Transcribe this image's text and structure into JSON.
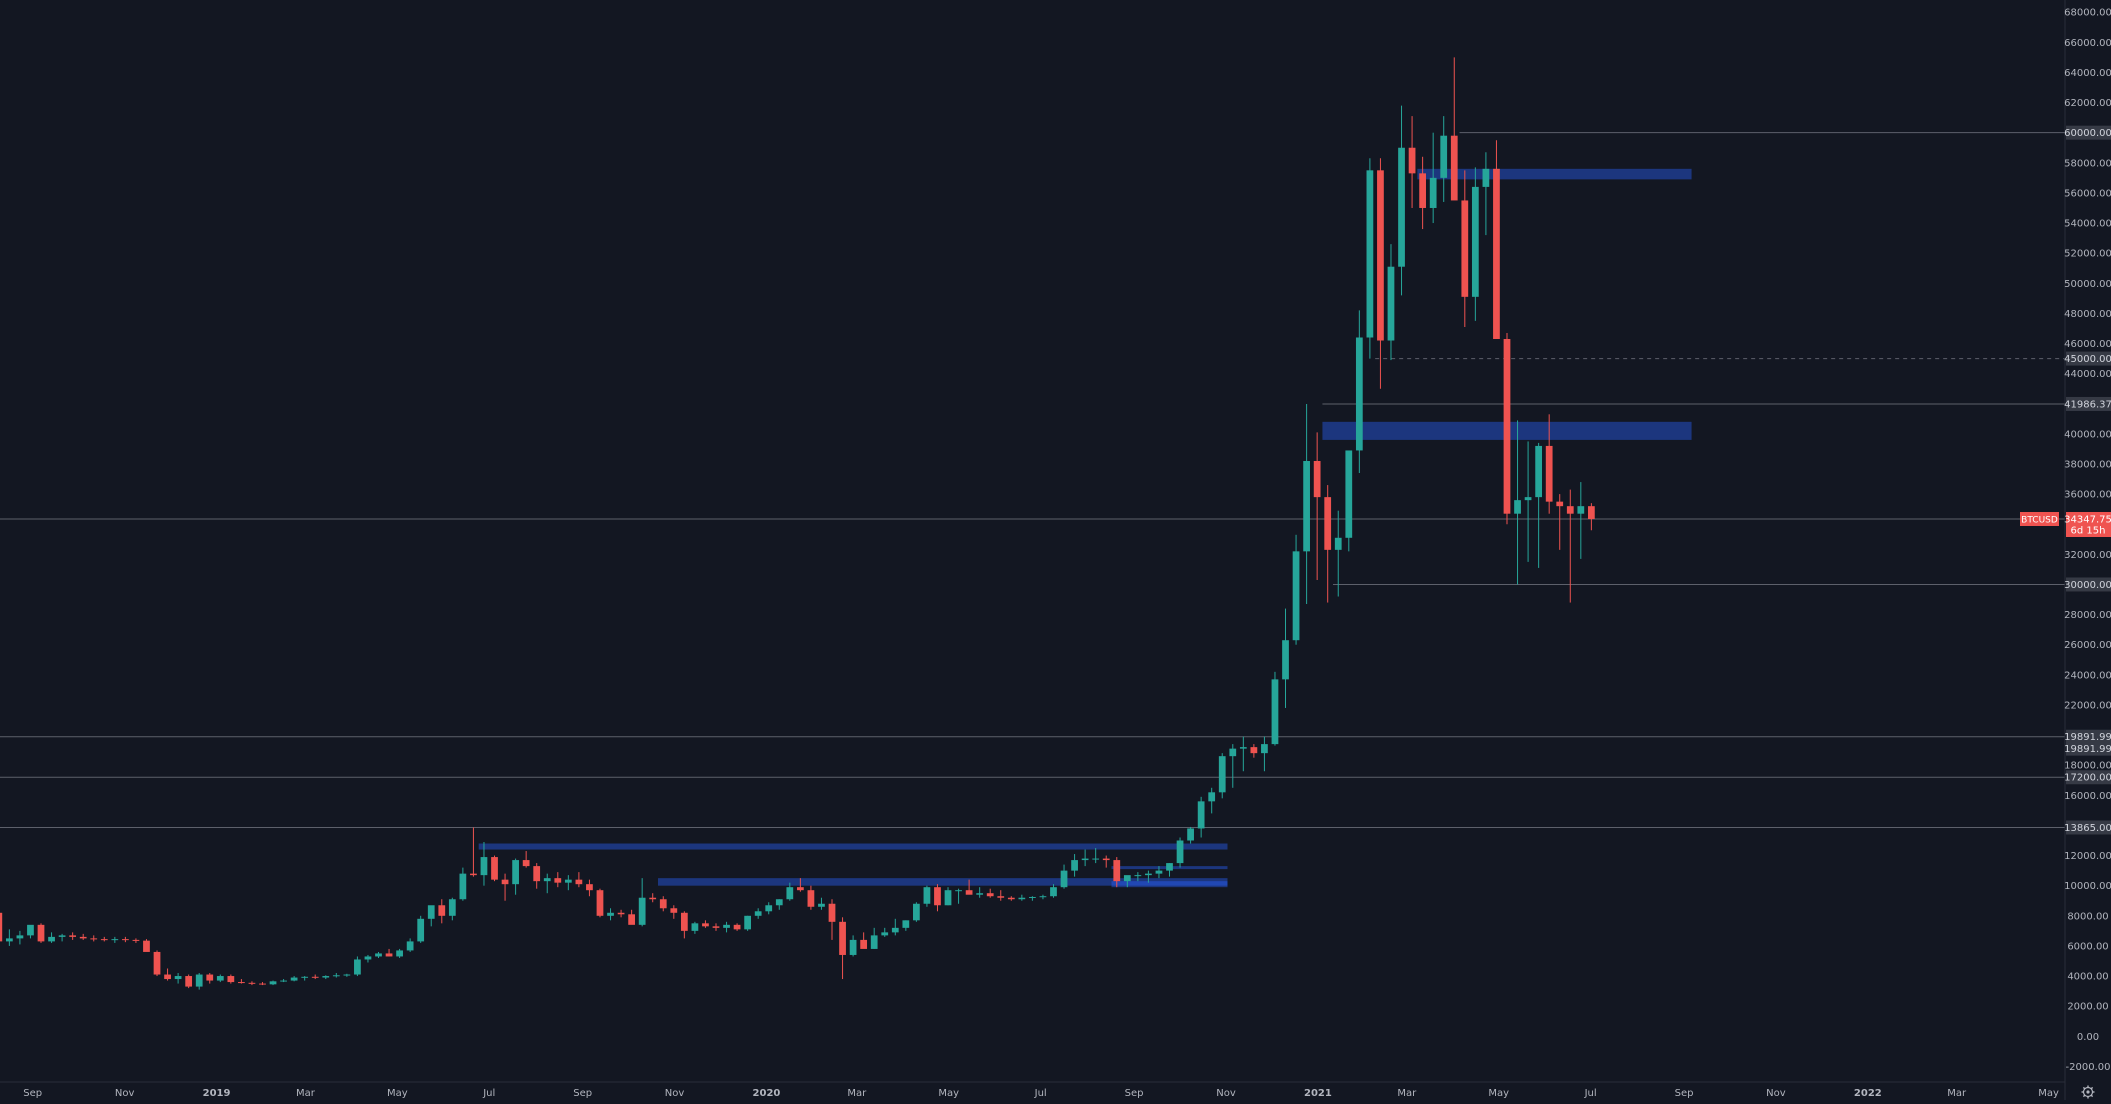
{
  "colors": {
    "background": "#131722",
    "up": "#26a69a",
    "down": "#ef5350",
    "zone": "#2962ff",
    "axis_text": "#b2b5be",
    "hline": "#5d606b",
    "label_bg": "#363a45",
    "price_tag": "#ef5350"
  },
  "icons": {
    "settings": "gear-icon"
  },
  "chart_data": {
    "type": "candlestick",
    "symbol": "BTCUSD",
    "timeframe": "1W",
    "last_price": "34347.75",
    "countdown": "6d 15h",
    "ylim": [
      -2000,
      69000
    ],
    "x_range": [
      "2018-07-30",
      "2022-06-20"
    ],
    "grid": false,
    "y_ticks": [
      -2000,
      0,
      2000,
      4000,
      6000,
      8000,
      10000,
      12000,
      16000,
      18000,
      22000,
      24000,
      26000,
      28000,
      32000,
      36000,
      38000,
      40000,
      44000,
      46000,
      48000,
      50000,
      52000,
      54000,
      56000,
      58000,
      62000,
      64000,
      66000,
      68000
    ],
    "x_ticks": [
      {
        "label": "Sep",
        "date": "2018-09-01",
        "bold": false
      },
      {
        "label": "Nov",
        "date": "2018-11-01",
        "bold": false
      },
      {
        "label": "2019",
        "date": "2019-01-01",
        "bold": true
      },
      {
        "label": "Mar",
        "date": "2019-03-01",
        "bold": false
      },
      {
        "label": "May",
        "date": "2019-05-01",
        "bold": false
      },
      {
        "label": "Jul",
        "date": "2019-07-01",
        "bold": false
      },
      {
        "label": "Sep",
        "date": "2019-09-01",
        "bold": false
      },
      {
        "label": "Nov",
        "date": "2019-11-01",
        "bold": false
      },
      {
        "label": "2020",
        "date": "2020-01-01",
        "bold": true
      },
      {
        "label": "Mar",
        "date": "2020-03-01",
        "bold": false
      },
      {
        "label": "May",
        "date": "2020-05-01",
        "bold": false
      },
      {
        "label": "Jul",
        "date": "2020-07-01",
        "bold": false
      },
      {
        "label": "Sep",
        "date": "2020-09-01",
        "bold": false
      },
      {
        "label": "Nov",
        "date": "2020-11-01",
        "bold": false
      },
      {
        "label": "2021",
        "date": "2021-01-01",
        "bold": true
      },
      {
        "label": "Mar",
        "date": "2021-03-01",
        "bold": false
      },
      {
        "label": "May",
        "date": "2021-05-01",
        "bold": false
      },
      {
        "label": "Jul",
        "date": "2021-07-01",
        "bold": false
      },
      {
        "label": "Sep",
        "date": "2021-09-01",
        "bold": false
      },
      {
        "label": "Nov",
        "date": "2021-11-01",
        "bold": false
      },
      {
        "label": "2022",
        "date": "2022-01-01",
        "bold": true
      },
      {
        "label": "Mar",
        "date": "2022-03-01",
        "bold": false
      },
      {
        "label": "May",
        "date": "2022-05-01",
        "bold": false
      }
    ],
    "horizontal_lines": [
      {
        "price": 60000,
        "label": "60000.00",
        "style": "solid",
        "start": "2021-04-05"
      },
      {
        "price": 45000,
        "label": "45000.00",
        "style": "dashed",
        "start": "2021-02-08"
      },
      {
        "price": 41986.37,
        "label": "41986.37",
        "style": "solid",
        "start": "2021-01-04"
      },
      {
        "price": 30000,
        "label": "30000.00",
        "style": "solid",
        "start": "2021-01-11"
      },
      {
        "price": 19891.99,
        "label": "19891.99",
        "style": "solid",
        "start": null
      },
      {
        "price": 17200,
        "label": "17200.00",
        "style": "solid",
        "start": null
      },
      {
        "price": 13865,
        "label": "13865.00",
        "style": "solid",
        "start": null
      }
    ],
    "extra_axis_labels": [
      {
        "price": 19100,
        "label": "19891.99"
      }
    ],
    "zones": [
      {
        "start": "2021-03-08",
        "end": "2021-09-06",
        "low": 56900,
        "high": 57600
      },
      {
        "start": "2021-01-04",
        "end": "2021-09-06",
        "low": 39600,
        "high": 40800
      },
      {
        "start": "2019-06-24",
        "end": "2020-11-02",
        "low": 12400,
        "high": 12800
      },
      {
        "start": "2019-10-21",
        "end": "2020-11-02",
        "low": 10000,
        "high": 10500
      },
      {
        "start": "2020-08-17",
        "end": "2020-11-02",
        "low": 11100,
        "high": 11300
      },
      {
        "start": "2020-08-17",
        "end": "2020-11-02",
        "low": 9900,
        "high": 10300
      }
    ],
    "candles": {
      "start": "2018-07-30",
      "interval_days": 7,
      "fields": [
        "open",
        "high",
        "low",
        "close"
      ],
      "ohlc": [
        [
          7000,
          8500,
          6800,
          8200
        ],
        [
          8200,
          8400,
          6100,
          6300
        ],
        [
          6300,
          7100,
          6000,
          6500
        ],
        [
          6500,
          7000,
          6100,
          6700
        ],
        [
          6700,
          7300,
          6500,
          7400
        ],
        [
          7400,
          7500,
          6200,
          6300
        ],
        [
          6300,
          6900,
          6200,
          6600
        ],
        [
          6600,
          6800,
          6300,
          6700
        ],
        [
          6700,
          6900,
          6400,
          6600
        ],
        [
          6600,
          6800,
          6400,
          6500
        ],
        [
          6500,
          6700,
          6300,
          6450
        ],
        [
          6450,
          6600,
          6300,
          6400
        ],
        [
          6400,
          6600,
          6200,
          6450
        ],
        [
          6450,
          6600,
          6250,
          6400
        ],
        [
          6400,
          6500,
          6200,
          6350
        ],
        [
          6350,
          6450,
          5800,
          5600
        ],
        [
          5600,
          5700,
          4000,
          4100
        ],
        [
          4100,
          4500,
          3700,
          3800
        ],
        [
          3800,
          4200,
          3500,
          4000
        ],
        [
          4000,
          4100,
          3200,
          3300
        ],
        [
          3300,
          4200,
          3100,
          4100
        ],
        [
          4100,
          4200,
          3500,
          3700
        ],
        [
          3700,
          4100,
          3600,
          4000
        ],
        [
          4000,
          4100,
          3500,
          3600
        ],
        [
          3600,
          3800,
          3500,
          3550
        ],
        [
          3550,
          3650,
          3400,
          3500
        ],
        [
          3500,
          3600,
          3400,
          3450
        ],
        [
          3450,
          3700,
          3400,
          3650
        ],
        [
          3650,
          3800,
          3600,
          3700
        ],
        [
          3700,
          4000,
          3650,
          3900
        ],
        [
          3900,
          4000,
          3700,
          3950
        ],
        [
          3950,
          4100,
          3800,
          3900
        ],
        [
          3900,
          4050,
          3800,
          4000
        ],
        [
          4000,
          4200,
          3900,
          4050
        ],
        [
          4050,
          4150,
          3950,
          4100
        ],
        [
          4100,
          5300,
          4000,
          5100
        ],
        [
          5100,
          5400,
          4900,
          5300
        ],
        [
          5300,
          5600,
          5200,
          5500
        ],
        [
          5500,
          5800,
          5300,
          5300
        ],
        [
          5300,
          5800,
          5200,
          5700
        ],
        [
          5700,
          6500,
          5600,
          6300
        ],
        [
          6300,
          8000,
          6200,
          7800
        ],
        [
          7800,
          8400,
          7300,
          8700
        ],
        [
          8700,
          9100,
          7500,
          8000
        ],
        [
          8000,
          9200,
          7700,
          9100
        ],
        [
          9100,
          11200,
          9000,
          10800
        ],
        [
          10800,
          13865,
          10600,
          10700
        ],
        [
          10700,
          12900,
          10000,
          11900
        ],
        [
          11900,
          12000,
          10300,
          10400
        ],
        [
          10400,
          10800,
          9000,
          10100
        ],
        [
          10100,
          11800,
          9400,
          11700
        ],
        [
          11700,
          12300,
          11200,
          11300
        ],
        [
          11300,
          11500,
          9800,
          10300
        ],
        [
          10300,
          10800,
          9500,
          10500
        ],
        [
          10500,
          10900,
          9900,
          10200
        ],
        [
          10200,
          10700,
          9700,
          10400
        ],
        [
          10400,
          10900,
          9900,
          10100
        ],
        [
          10100,
          10400,
          9300,
          9700
        ],
        [
          9700,
          9800,
          7900,
          8000
        ],
        [
          8000,
          8500,
          7700,
          8200
        ],
        [
          8200,
          8400,
          7900,
          8100
        ],
        [
          8100,
          8400,
          7500,
          7400
        ],
        [
          7400,
          10500,
          7300,
          9200
        ],
        [
          9200,
          9500,
          8900,
          9100
        ],
        [
          9100,
          9300,
          8300,
          8500
        ],
        [
          8500,
          8700,
          7800,
          8200
        ],
        [
          8200,
          8300,
          6500,
          7000
        ],
        [
          7000,
          7600,
          6800,
          7500
        ],
        [
          7500,
          7700,
          7200,
          7300
        ],
        [
          7300,
          7500,
          7000,
          7200
        ],
        [
          7200,
          7600,
          6900,
          7400
        ],
        [
          7400,
          7500,
          7000,
          7100
        ],
        [
          7100,
          8000,
          7000,
          8000
        ],
        [
          8000,
          8500,
          7800,
          8300
        ],
        [
          8300,
          8900,
          8100,
          8700
        ],
        [
          8700,
          9100,
          8400,
          9100
        ],
        [
          9100,
          10200,
          9000,
          9900
        ],
        [
          9900,
          10500,
          9600,
          9700
        ],
        [
          9700,
          10000,
          8400,
          8600
        ],
        [
          8600,
          9200,
          8400,
          8800
        ],
        [
          8800,
          9100,
          6400,
          7600
        ],
        [
          7600,
          7900,
          3800,
          5400
        ],
        [
          5400,
          6700,
          5300,
          6400
        ],
        [
          6400,
          6900,
          5900,
          5800
        ],
        [
          5800,
          7200,
          5800,
          6700
        ],
        [
          6700,
          7200,
          6600,
          6900
        ],
        [
          6900,
          7800,
          6700,
          7200
        ],
        [
          7200,
          7700,
          7000,
          7700
        ],
        [
          7700,
          8900,
          7600,
          8800
        ],
        [
          8800,
          10000,
          8600,
          9900
        ],
        [
          9900,
          10100,
          8300,
          8700
        ],
        [
          8700,
          9900,
          8700,
          9700
        ],
        [
          9700,
          9800,
          8800,
          9700
        ],
        [
          9700,
          10400,
          9500,
          9400
        ],
        [
          9400,
          9900,
          9200,
          9500
        ],
        [
          9500,
          9800,
          9200,
          9300
        ],
        [
          9300,
          9700,
          9000,
          9200
        ],
        [
          9200,
          9300,
          9000,
          9100
        ],
        [
          9100,
          9400,
          9000,
          9200
        ],
        [
          9200,
          9300,
          9000,
          9250
        ],
        [
          9250,
          9400,
          9100,
          9300
        ],
        [
          9300,
          10100,
          9200,
          9900
        ],
        [
          9900,
          11400,
          9800,
          11000
        ],
        [
          11000,
          12100,
          10600,
          11700
        ],
        [
          11700,
          12400,
          11300,
          11800
        ],
        [
          11800,
          12500,
          11500,
          11800
        ],
        [
          11800,
          12000,
          11200,
          11700
        ],
        [
          11700,
          11900,
          9900,
          10300
        ],
        [
          10300,
          10500,
          9900,
          10700
        ],
        [
          10700,
          10900,
          10300,
          10700
        ],
        [
          10700,
          11000,
          10200,
          10800
        ],
        [
          10800,
          11300,
          10500,
          11000
        ],
        [
          11000,
          11500,
          10600,
          11500
        ],
        [
          11500,
          13200,
          11200,
          13000
        ],
        [
          13000,
          13900,
          12800,
          13800
        ],
        [
          13800,
          15900,
          13200,
          15600
        ],
        [
          15600,
          16500,
          14800,
          16200
        ],
        [
          16200,
          18800,
          15800,
          18600
        ],
        [
          18600,
          19400,
          16500,
          19100
        ],
        [
          19100,
          19900,
          17600,
          19200
        ],
        [
          19200,
          19400,
          18500,
          18800
        ],
        [
          18800,
          19900,
          17600,
          19400
        ],
        [
          19400,
          24200,
          19300,
          23700
        ],
        [
          23700,
          28400,
          21800,
          26300
        ],
        [
          26300,
          33300,
          26000,
          32200
        ],
        [
          32200,
          41986,
          28700,
          38200
        ],
        [
          38200,
          40100,
          30300,
          35800
        ],
        [
          35800,
          36600,
          28800,
          32300
        ],
        [
          32300,
          34900,
          29200,
          33100
        ],
        [
          33100,
          38700,
          32200,
          38900
        ],
        [
          38900,
          48200,
          37400,
          46400
        ],
        [
          46400,
          58300,
          45000,
          57500
        ],
        [
          57500,
          58300,
          43000,
          46200
        ],
        [
          46200,
          52600,
          44900,
          51100
        ],
        [
          51100,
          61800,
          49200,
          59000
        ],
        [
          59000,
          61100,
          55000,
          57300
        ],
        [
          57300,
          58400,
          53600,
          55000
        ],
        [
          55000,
          60000,
          54000,
          57000
        ],
        [
          57000,
          61100,
          55400,
          59800
        ],
        [
          59800,
          65000,
          56000,
          55500
        ],
        [
          55500,
          57500,
          47100,
          49100
        ],
        [
          49100,
          57700,
          47500,
          56400
        ],
        [
          56400,
          58700,
          53200,
          57600
        ],
        [
          57600,
          59500,
          46500,
          46300
        ],
        [
          46300,
          46700,
          34000,
          34700
        ],
        [
          34700,
          40900,
          30000,
          35600
        ],
        [
          35600,
          39500,
          31500,
          35800
        ],
        [
          35800,
          39400,
          31100,
          39200
        ],
        [
          39200,
          41300,
          34700,
          35500
        ],
        [
          35500,
          36000,
          32300,
          35200
        ],
        [
          35200,
          36300,
          28800,
          34700
        ],
        [
          34700,
          36800,
          31700,
          35200
        ],
        [
          35200,
          35400,
          33600,
          34347.75
        ]
      ]
    }
  }
}
